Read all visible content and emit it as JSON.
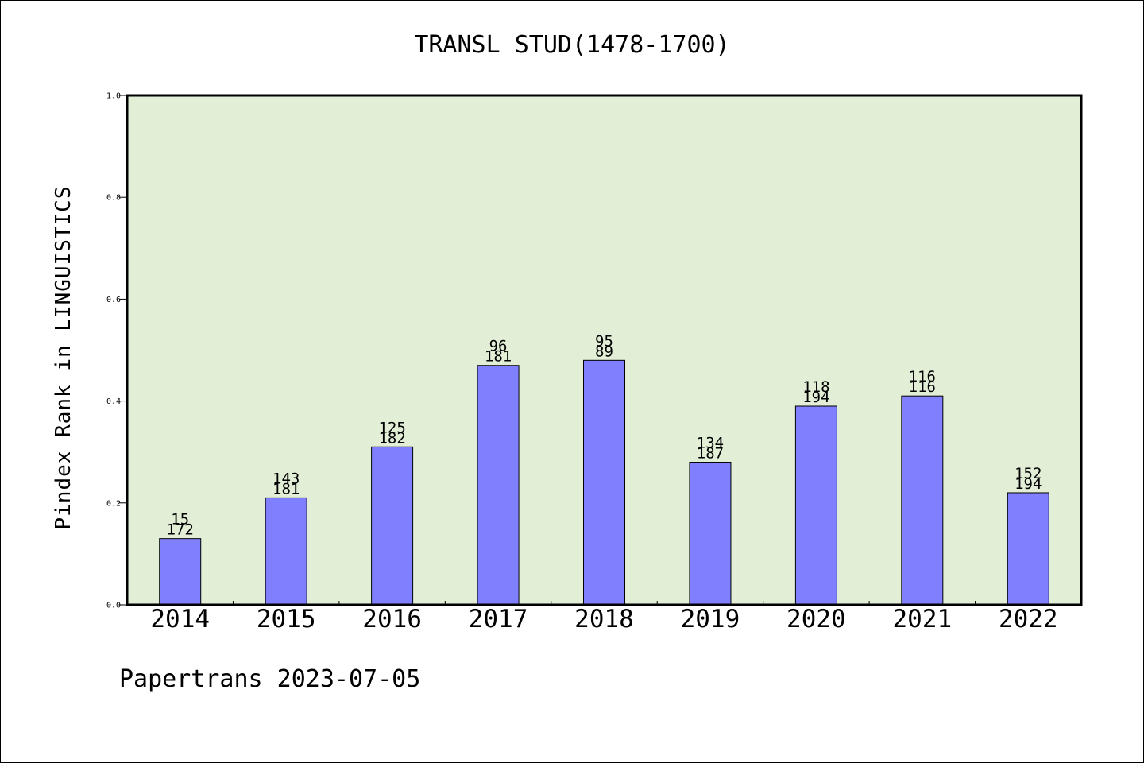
{
  "chart_data": {
    "type": "bar",
    "title": "TRANSL STUD(1478-1700)",
    "ylabel": "Pindex Rank in LINGUISTICS",
    "xlabel": "",
    "categories": [
      "2014",
      "2015",
      "2016",
      "2017",
      "2018",
      "2019",
      "2020",
      "2021",
      "2022"
    ],
    "values": [
      0.13,
      0.21,
      0.31,
      0.47,
      0.48,
      0.28,
      0.39,
      0.41,
      0.22
    ],
    "labels_top": [
      "15",
      "143",
      "125",
      "96",
      "95",
      "134",
      "118",
      "116",
      "152"
    ],
    "labels_bottom": [
      "172",
      "181",
      "182",
      "181",
      "89",
      "187",
      "194",
      "116",
      "194"
    ],
    "ylim": [
      0.0,
      1.0
    ],
    "yticks": [
      "0.0",
      "0.2",
      "0.4",
      "0.6",
      "0.8",
      "1.0"
    ],
    "grid": false,
    "colors": {
      "plot_background": "#e2efd6",
      "bar_fill": "#8080ff",
      "bar_edge": "#000000"
    }
  },
  "footer": {
    "text": "Papertrans 2023-07-05"
  }
}
